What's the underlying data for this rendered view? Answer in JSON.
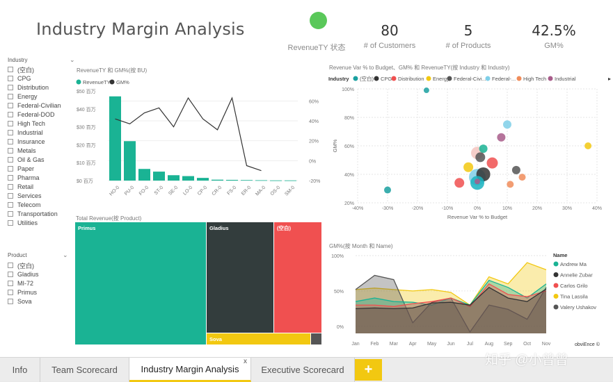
{
  "page": {
    "title": "Industry Margin Analysis"
  },
  "kpis": {
    "status_label": "RevenueTY 状态",
    "status_color": "#5ac85a",
    "customers_value": "80",
    "customers_label": "# of Customers",
    "products_value": "5",
    "products_label": "# of Products",
    "gm_value": "42.5%",
    "gm_label": "GM%"
  },
  "slicers": {
    "industry": {
      "title": "Industry",
      "items": [
        "(空白)",
        "CPG",
        "Distribution",
        "Energy",
        "Federal-Civilian",
        "Federal-DOD",
        "High Tech",
        "Industrial",
        "Insurance",
        "Metals",
        "Oil & Gas",
        "Paper",
        "Pharma",
        "Retail",
        "Services",
        "Telecom",
        "Transportation",
        "Utilities"
      ]
    },
    "product": {
      "title": "Product",
      "items": [
        "(空白)",
        "Gladius",
        "MI-72",
        "Primus",
        "Sova"
      ]
    }
  },
  "charts": {
    "bar_line": {
      "title": "RevenueTY 和 GM%(按 BU)",
      "legend": [
        "RevenueTY",
        "GM%"
      ],
      "colors": {
        "bar": "#1ab394",
        "line": "#333333"
      }
    },
    "scatter": {
      "title": "Revenue Var % to Budget、GM% 和 RevenueTY(按 Industry 和 Industry)",
      "legend_title": "Industry",
      "legend": [
        {
          "name": "(空白)",
          "color": "#1aa0a0"
        },
        {
          "name": "CPG",
          "color": "#333333"
        },
        {
          "name": "Distribution",
          "color": "#f05050"
        },
        {
          "name": "Energy",
          "color": "#f2c811"
        },
        {
          "name": "Federal-Civi...",
          "color": "#555555"
        },
        {
          "name": "Federal-...",
          "color": "#7fcfe8"
        },
        {
          "name": "High Tech",
          "color": "#f08c5a"
        },
        {
          "name": "Industrial",
          "color": "#a85c8a"
        }
      ]
    },
    "treemap": {
      "title": "Total Revenue(按 Product)"
    },
    "area": {
      "title": "GM%(按 Month 和 Name)",
      "legend_title": "Name",
      "legend": [
        {
          "name": "Andrew Ma",
          "color": "#1ab394"
        },
        {
          "name": "Annelie Zubar",
          "color": "#333333"
        },
        {
          "name": "Carlos Grilo",
          "color": "#f05050"
        },
        {
          "name": "Tina Lassila",
          "color": "#f2c811"
        },
        {
          "name": "Valery Ushakov",
          "color": "#555555"
        }
      ]
    }
  },
  "chart_data": [
    {
      "type": "bar",
      "categories": [
        "HO-0",
        "PU-0",
        "FO-0",
        "ST-0",
        "SE-0",
        "LO-0",
        "CP-0",
        "CR-0",
        "FS-0",
        "ER-0",
        "MA-0",
        "OS-0",
        "SM-0"
      ],
      "series": [
        {
          "name": "RevenueTY",
          "values": [
            47,
            22,
            6.5,
            5,
            3,
            2.5,
            1.5,
            0.5,
            0.4,
            0.3,
            0.2,
            0.1,
            0.1
          ]
        },
        {
          "name": "GM%",
          "values": [
            42,
            37,
            48,
            53,
            34,
            63,
            42,
            31,
            63,
            -5,
            -10,
            null,
            null
          ]
        }
      ],
      "y_ticks": [
        "$50 百万",
        "$40 百万",
        "$30 百万",
        "$20 百万",
        "$10 百万",
        "$0 百万"
      ],
      "y2_ticks": [
        "60%",
        "40%",
        "20%",
        "0%",
        "-20%"
      ],
      "ylim": [
        0,
        50
      ],
      "y2lim": [
        -20,
        70
      ]
    },
    {
      "type": "scatter",
      "xlabel": "Revenue Var % to Budget",
      "ylabel": "GM%",
      "x_ticks": [
        "-40%",
        "-30%",
        "-20%",
        "-10%",
        "0%",
        "10%",
        "20%",
        "30%",
        "40%"
      ],
      "y_ticks": [
        "100%",
        "80%",
        "60%",
        "40%",
        "20%"
      ],
      "xlim": [
        -40,
        40
      ],
      "ylim": [
        20,
        100
      ],
      "points": [
        {
          "x": -17,
          "y": 99,
          "r": 4,
          "color": "#1aa0a0"
        },
        {
          "x": -30,
          "y": 29,
          "r": 5,
          "color": "#1aa0a0"
        },
        {
          "x": 37,
          "y": 60,
          "r": 5,
          "color": "#f2c811"
        },
        {
          "x": 10,
          "y": 75,
          "r": 6,
          "color": "#7fcfe8"
        },
        {
          "x": 8,
          "y": 66,
          "r": 6,
          "color": "#a85c8a"
        },
        {
          "x": 0,
          "y": 55,
          "r": 9,
          "color": "#f5c6c0"
        },
        {
          "x": 2,
          "y": 58,
          "r": 6,
          "color": "#1ab394"
        },
        {
          "x": 1,
          "y": 52,
          "r": 7,
          "color": "#555555"
        },
        {
          "x": -3,
          "y": 45,
          "r": 7,
          "color": "#f2c811"
        },
        {
          "x": 5,
          "y": 48,
          "r": 8,
          "color": "#f05050"
        },
        {
          "x": 0,
          "y": 38,
          "r": 12,
          "color": "#7fcfe8"
        },
        {
          "x": 2,
          "y": 40,
          "r": 10,
          "color": "#333333"
        },
        {
          "x": 0,
          "y": 34,
          "r": 10,
          "color": "#1ab3c0"
        },
        {
          "x": 13,
          "y": 43,
          "r": 6,
          "color": "#555555"
        },
        {
          "x": 15,
          "y": 38,
          "r": 5,
          "color": "#f08c5a"
        },
        {
          "x": 11,
          "y": 33,
          "r": 5,
          "color": "#f08c5a"
        },
        {
          "x": -6,
          "y": 34,
          "r": 7,
          "color": "#f05050"
        },
        {
          "x": 0,
          "y": 35,
          "r": 4,
          "color": "#a85c8a"
        }
      ]
    },
    {
      "type": "treemap",
      "items": [
        {
          "name": "Primus",
          "color": "#1ab394"
        },
        {
          "name": "Gladius",
          "color": "#333d3d"
        },
        {
          "name": "(空白)",
          "color": "#f05050"
        },
        {
          "name": "Sova",
          "color": "#f2c811"
        },
        {
          "name": "",
          "color": "#555555"
        }
      ]
    },
    {
      "type": "area",
      "categories": [
        "Jan",
        "Feb",
        "Mar",
        "Apr",
        "May",
        "Jun",
        "Jul",
        "Aug",
        "Sep",
        "Oct",
        "Nov"
      ],
      "y_ticks": [
        "100%",
        "50%",
        "0%"
      ],
      "ylim": [
        -10,
        100
      ],
      "series": [
        {
          "name": "Andrew Ma",
          "values": [
            35,
            40,
            35,
            34,
            30,
            40,
            30,
            65,
            55,
            40,
            60
          ]
        },
        {
          "name": "Annelie Zubar",
          "values": [
            25,
            26,
            25,
            26,
            33,
            34,
            30,
            55,
            40,
            35,
            53
          ]
        },
        {
          "name": "Carlos Grilo",
          "values": [
            30,
            30,
            28,
            32,
            35,
            40,
            28,
            60,
            45,
            42,
            50
          ]
        },
        {
          "name": "Tina Lassila",
          "values": [
            52,
            54,
            52,
            50,
            52,
            48,
            30,
            70,
            60,
            90,
            80
          ]
        },
        {
          "name": "Valery Ushakov",
          "values": [
            52,
            72,
            66,
            5,
            34,
            40,
            -8,
            30,
            24,
            10,
            55
          ]
        }
      ]
    }
  ],
  "tabs": [
    {
      "label": "Info"
    },
    {
      "label": "Team Scorecard"
    },
    {
      "label": "Industry Margin Analysis",
      "close": "x"
    },
    {
      "label": "Executive Scorecard"
    }
  ],
  "tab_add": "+",
  "watermark": "知乎 @小曾曾",
  "credit": "obviEnce ©"
}
